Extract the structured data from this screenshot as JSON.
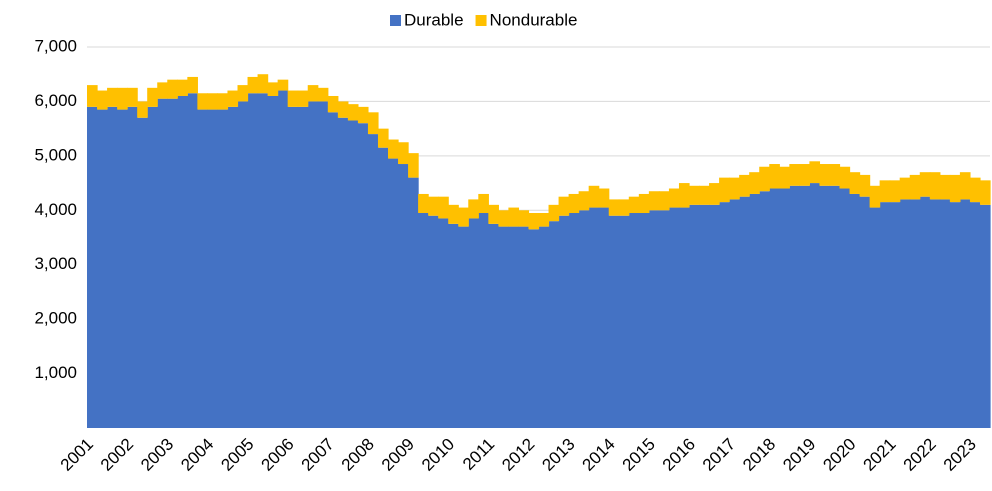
{
  "chart_data": {
    "type": "bar",
    "stacked": true,
    "legend": "top",
    "categories": [
      "2001",
      null,
      null,
      null,
      "2002",
      null,
      null,
      null,
      "2003",
      null,
      null,
      null,
      "2004",
      null,
      null,
      null,
      "2005",
      null,
      null,
      null,
      "2006",
      null,
      null,
      null,
      "2007",
      null,
      null,
      null,
      "2008",
      null,
      null,
      null,
      "2009",
      null,
      null,
      null,
      "2010",
      null,
      null,
      null,
      "2011",
      null,
      null,
      null,
      "2012",
      null,
      null,
      null,
      "2013",
      null,
      null,
      null,
      "2014",
      null,
      null,
      null,
      "2015",
      null,
      null,
      null,
      "2016",
      null,
      null,
      null,
      "2017",
      null,
      null,
      null,
      "2018",
      null,
      null,
      null,
      "2019",
      null,
      null,
      null,
      "2020",
      null,
      null,
      null,
      "2021",
      null,
      null,
      null,
      "2022",
      null,
      null,
      null,
      "2023",
      null
    ],
    "series": [
      {
        "name": "Durable",
        "color": "#4472c4",
        "values": [
          5900,
          5850,
          5900,
          5850,
          5900,
          5700,
          5900,
          6050,
          6050,
          6100,
          6150,
          5850,
          5850,
          5850,
          5900,
          6000,
          6150,
          6150,
          6100,
          6200,
          5900,
          5900,
          6000,
          6000,
          5800,
          5700,
          5650,
          5600,
          5400,
          5150,
          4950,
          4850,
          4600,
          3950,
          3900,
          3850,
          3750,
          3700,
          3850,
          3950,
          3750,
          3700,
          3700,
          3700,
          3650,
          3700,
          3800,
          3900,
          3950,
          4000,
          4050,
          4050,
          3900,
          3900,
          3950,
          3950,
          4000,
          4000,
          4050,
          4050,
          4100,
          4100,
          4100,
          4150,
          4200,
          4250,
          4300,
          4350,
          4400,
          4400,
          4450,
          4450,
          4500,
          4450,
          4450,
          4400,
          4300,
          4250,
          4050,
          4150,
          4150,
          4200,
          4200,
          4250,
          4200,
          4200,
          4150,
          4200,
          4150,
          4100
        ]
      },
      {
        "name": "Nondurable",
        "color": "#ffc000",
        "values": [
          400,
          350,
          350,
          400,
          350,
          300,
          350,
          300,
          350,
          300,
          300,
          300,
          300,
          300,
          300,
          300,
          300,
          350,
          250,
          200,
          300,
          300,
          300,
          250,
          300,
          300,
          300,
          300,
          400,
          350,
          350,
          400,
          450,
          350,
          350,
          400,
          350,
          350,
          350,
          350,
          350,
          300,
          350,
          300,
          300,
          250,
          300,
          350,
          350,
          350,
          400,
          350,
          300,
          300,
          300,
          350,
          350,
          350,
          350,
          450,
          350,
          350,
          400,
          450,
          400,
          400,
          400,
          450,
          450,
          400,
          400,
          400,
          400,
          400,
          400,
          400,
          400,
          400,
          400,
          400,
          400,
          400,
          450,
          450,
          500,
          450,
          500,
          500,
          450,
          450
        ]
      }
    ],
    "ylim": [
      0,
      7000
    ],
    "yticks": [
      {
        "value": 1000,
        "label": "1,000"
      },
      {
        "value": 2000,
        "label": "2,000"
      },
      {
        "value": 3000,
        "label": "3,000"
      },
      {
        "value": 4000,
        "label": "4,000"
      },
      {
        "value": 5000,
        "label": "5,000"
      },
      {
        "value": 6000,
        "label": "6,000"
      },
      {
        "value": 7000,
        "label": "7,000"
      }
    ],
    "grid": true
  }
}
